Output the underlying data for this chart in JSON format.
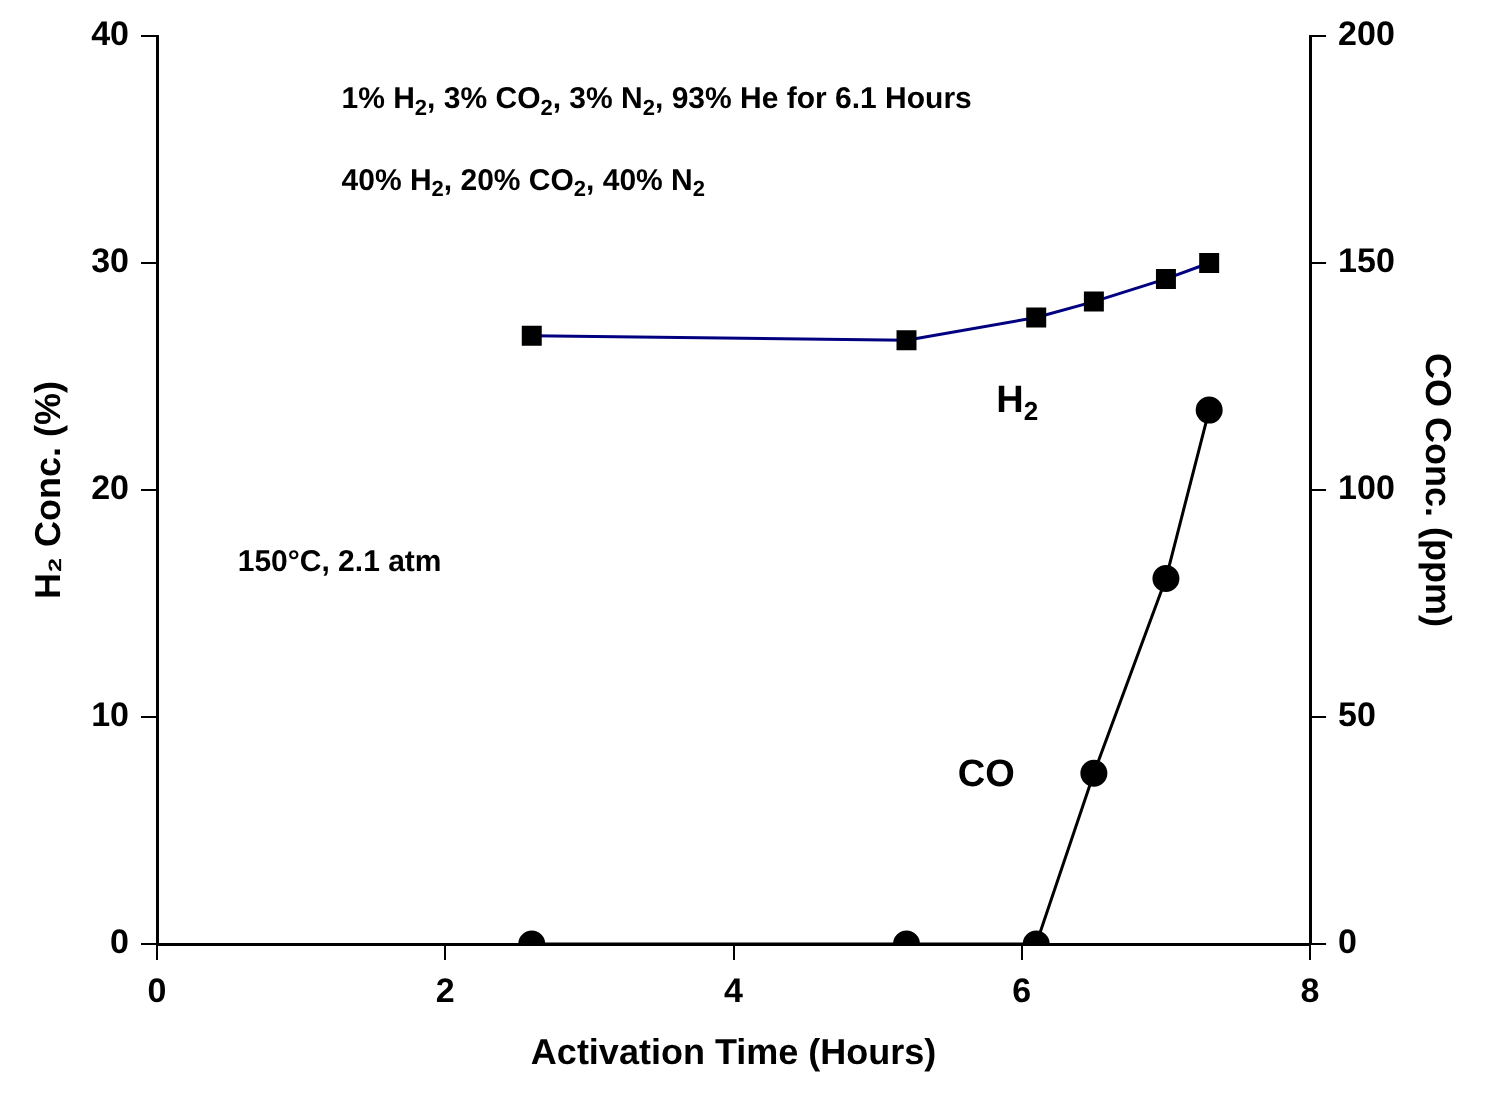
{
  "chart_data": {
    "type": "line",
    "xlabel": "Activation Time (Hours)",
    "ylabel": "H₂ Conc. (%)",
    "y2label": "CO Conc. (ppm)",
    "series": [
      {
        "name": "H$_{2}$",
        "color": "#000080",
        "marker": "square",
        "x": [
          2.6,
          5.2,
          6.1,
          6.5,
          7.0,
          7.3
        ],
        "values": [
          26.8,
          26.6,
          27.6,
          28.3,
          29.3,
          30.0
        ]
      },
      {
        "name": "CO",
        "color": "#000000",
        "marker": "circle",
        "axis": "y2",
        "x": [
          2.6,
          5.2,
          6.1,
          6.5,
          7.0,
          7.3
        ],
        "values": [
          0,
          0,
          0,
          37.6,
          80.5,
          117.6
        ]
      }
    ],
    "xlim": [
      0,
      8
    ],
    "xticks": [
      0,
      2,
      4,
      6,
      8
    ],
    "ylim": [
      0,
      40
    ],
    "yticks": [
      0,
      10,
      20,
      30,
      40
    ],
    "y2lim": [
      0,
      200
    ],
    "y2ticks": [
      0,
      50,
      100,
      150,
      200
    ],
    "grid": false,
    "legend": false,
    "annotations": [
      "1% H$_{2}$, 3% CO$_{2}$, 3% N$_{2}$, 93% He for 6.1 Hours",
      "40% H$_{2}$, 20% CO$_{2}$, 40% N$_{2}$",
      "150°C, 2.1 atm"
    ]
  }
}
